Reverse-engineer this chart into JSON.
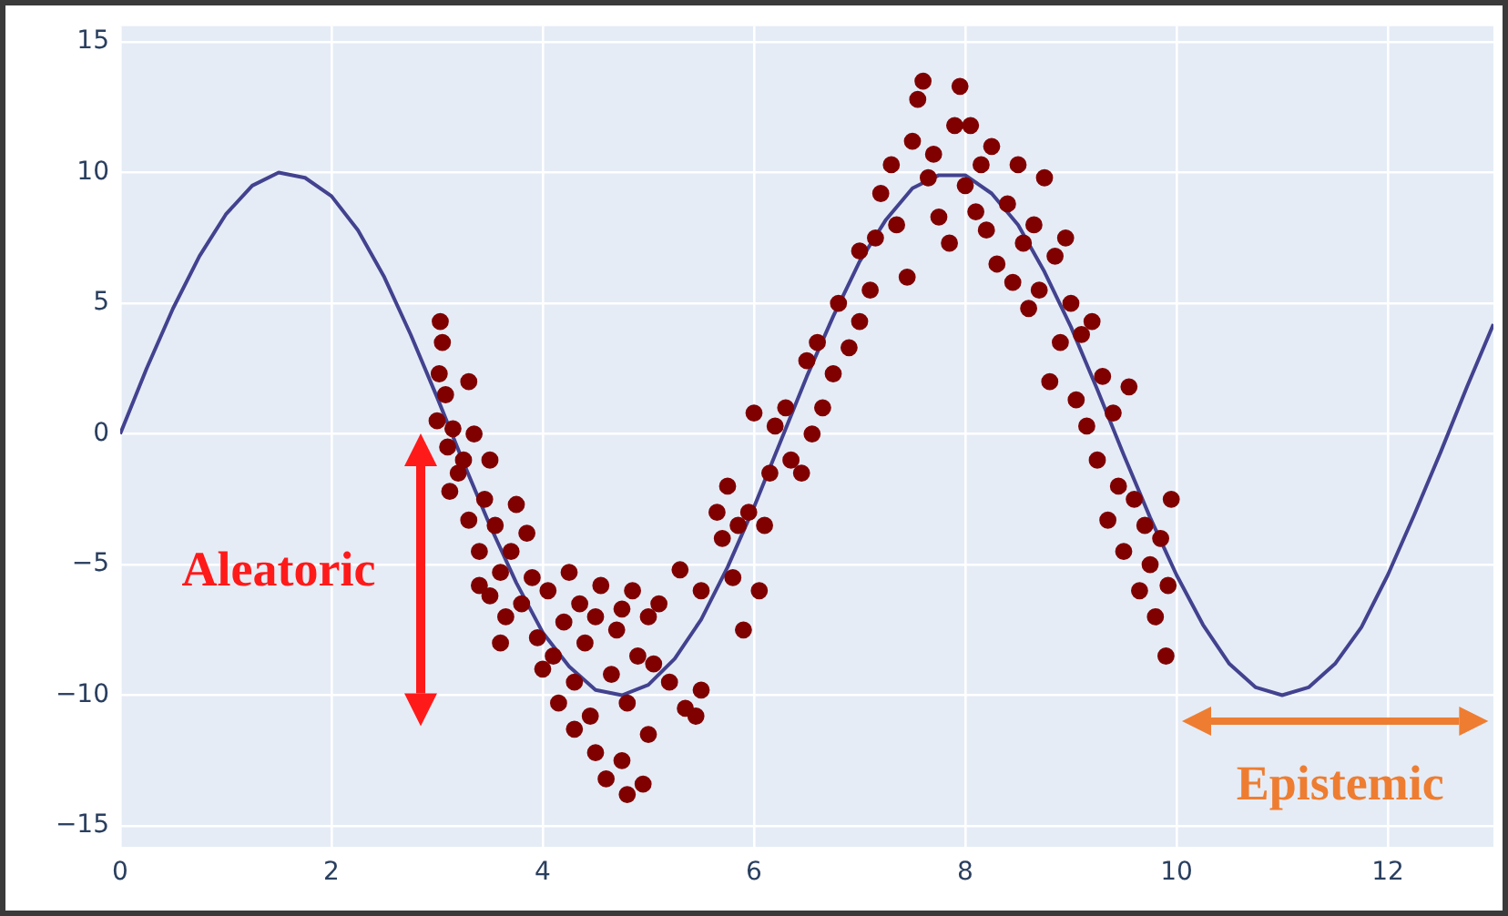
{
  "chart_data": {
    "type": "scatter",
    "xlim": [
      0,
      13
    ],
    "ylim": [
      -15.8,
      15.6
    ],
    "xticks": [
      0,
      2,
      4,
      6,
      8,
      10,
      12
    ],
    "yticks": [
      -15,
      -10,
      -5,
      0,
      5,
      10,
      15
    ],
    "grid": true,
    "legend": false,
    "marker": "circle",
    "annotations": [
      "Aleatoric",
      "Epistemic"
    ],
    "series": [
      {
        "type": "line",
        "color": "#42428f",
        "marker": "none",
        "x": [
          0,
          0.25,
          0.5,
          0.75,
          1,
          1.25,
          1.5,
          1.75,
          2,
          2.25,
          2.5,
          2.75,
          3,
          3.25,
          3.5,
          3.75,
          4,
          4.25,
          4.5,
          4.75,
          5,
          5.25,
          5.5,
          5.75,
          6,
          6.25,
          6.5,
          6.75,
          7,
          7.25,
          7.5,
          7.75,
          8,
          8.25,
          8.5,
          8.75,
          9,
          9.25,
          9.5,
          9.75,
          10,
          10.25,
          10.5,
          10.75,
          11,
          11.25,
          11.5,
          11.75,
          12,
          12.25,
          12.5,
          12.75,
          13
        ],
        "values": [
          0,
          2.5,
          4.8,
          6.8,
          8.4,
          9.5,
          10.0,
          9.8,
          9.1,
          7.8,
          6.0,
          3.8,
          1.4,
          -1.1,
          -3.5,
          -5.7,
          -7.6,
          -8.9,
          -9.8,
          -10.0,
          -9.6,
          -8.6,
          -7.1,
          -5.1,
          -2.8,
          -0.3,
          2.2,
          4.5,
          6.6,
          8.2,
          9.4,
          9.9,
          9.9,
          9.2,
          8.0,
          6.2,
          4.1,
          1.7,
          -0.8,
          -3.2,
          -5.4,
          -7.3,
          -8.8,
          -9.7,
          -10.0,
          -9.7,
          -8.8,
          -7.4,
          -5.4,
          -3.1,
          -0.7,
          1.8,
          4.2
        ]
      },
      {
        "color": "#800000",
        "x": [
          3.03,
          3.05,
          3.02,
          3.08,
          3.0,
          3.1,
          3.15,
          3.2,
          3.12,
          3.25,
          3.3,
          3.35,
          3.3,
          3.4,
          3.45,
          3.5,
          3.55,
          3.6,
          3.5,
          3.65,
          3.7,
          3.75,
          3.6,
          3.4,
          3.8,
          3.85,
          3.9,
          3.95,
          4.0,
          4.05,
          4.1,
          4.15,
          4.2,
          4.25,
          4.3,
          4.3,
          4.35,
          4.4,
          4.45,
          4.5,
          4.5,
          4.55,
          4.6,
          4.65,
          4.7,
          4.75,
          4.8,
          4.8,
          4.85,
          4.9,
          4.95,
          5.0,
          5.0,
          5.05,
          4.75,
          5.1,
          5.2,
          5.3,
          5.35,
          5.45,
          5.5,
          5.5,
          5.65,
          5.7,
          5.75,
          5.8,
          5.85,
          5.9,
          5.95,
          6.05,
          6.1,
          6.15,
          6.0,
          6.2,
          6.3,
          6.35,
          6.45,
          6.5,
          6.55,
          6.6,
          6.65,
          6.75,
          6.8,
          6.9,
          7.0,
          7.1,
          7.0,
          7.15,
          7.2,
          7.3,
          7.35,
          7.45,
          7.5,
          7.55,
          7.6,
          7.65,
          7.7,
          7.75,
          7.85,
          7.9,
          7.95,
          8.0,
          8.05,
          8.1,
          8.15,
          8.2,
          8.25,
          8.3,
          8.4,
          8.45,
          8.5,
          8.55,
          8.6,
          8.65,
          8.7,
          8.75,
          8.8,
          8.85,
          8.9,
          8.95,
          9.0,
          9.05,
          9.1,
          9.15,
          9.2,
          9.25,
          9.3,
          9.35,
          9.4,
          9.45,
          9.5,
          9.55,
          9.6,
          9.65,
          9.7,
          9.75,
          9.8,
          9.85,
          9.9,
          9.95,
          9.92
        ],
        "values": [
          4.3,
          3.5,
          2.3,
          1.5,
          0.5,
          -0.5,
          0.2,
          -1.5,
          -2.2,
          -1.0,
          2.0,
          0.0,
          -3.3,
          -4.5,
          -2.5,
          -1.0,
          -3.5,
          -5.3,
          -6.2,
          -7.0,
          -4.5,
          -2.7,
          -8.0,
          -5.8,
          -6.5,
          -3.8,
          -5.5,
          -7.8,
          -9.0,
          -6.0,
          -8.5,
          -10.3,
          -7.2,
          -5.3,
          -11.3,
          -9.5,
          -6.5,
          -8.0,
          -10.8,
          -12.2,
          -7.0,
          -5.8,
          -13.2,
          -9.2,
          -7.5,
          -12.5,
          -13.8,
          -10.3,
          -6.0,
          -8.5,
          -13.4,
          -7.0,
          -11.5,
          -8.8,
          -6.7,
          -6.5,
          -9.5,
          -5.2,
          -10.5,
          -10.8,
          -6.0,
          -9.8,
          -3.0,
          -4.0,
          -2.0,
          -5.5,
          -3.5,
          -7.5,
          -3.0,
          -6.0,
          -3.5,
          -1.5,
          0.8,
          0.3,
          1.0,
          -1.0,
          -1.5,
          2.8,
          0.0,
          3.5,
          1.0,
          2.3,
          5.0,
          3.3,
          7.0,
          5.5,
          4.3,
          7.5,
          9.2,
          10.3,
          8.0,
          6.0,
          11.2,
          12.8,
          13.5,
          9.8,
          10.7,
          8.3,
          7.3,
          11.8,
          13.3,
          9.5,
          11.8,
          8.5,
          10.3,
          7.8,
          11.0,
          6.5,
          8.8,
          5.8,
          10.3,
          7.3,
          4.8,
          8.0,
          5.5,
          9.8,
          2.0,
          6.8,
          3.5,
          7.5,
          5.0,
          1.3,
          3.8,
          0.3,
          4.3,
          -1.0,
          2.2,
          -3.3,
          0.8,
          -2.0,
          -4.5,
          1.8,
          -2.5,
          -6.0,
          -3.5,
          -5.0,
          -7.0,
          -4.0,
          -8.5,
          -2.5,
          -5.8
        ]
      }
    ]
  }
}
